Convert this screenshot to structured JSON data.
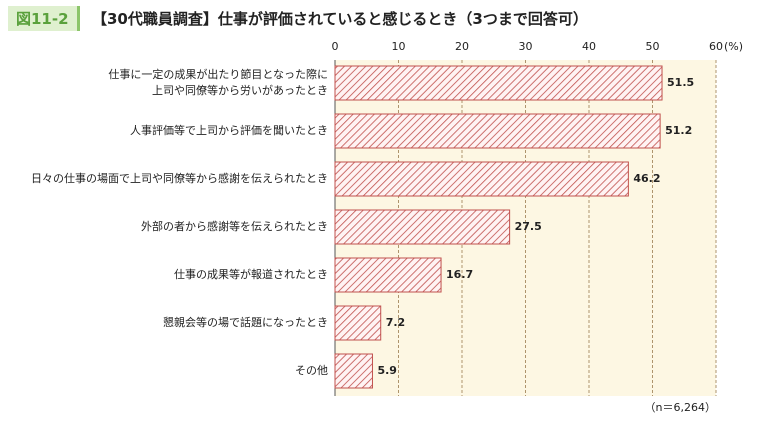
{
  "figure_label": "図11-2",
  "chart_data": {
    "type": "bar",
    "orientation": "horizontal",
    "title": "【30代職員調査】仕事が評価されていると感じるとき（3つまで回答可）",
    "categories": [
      "仕事に一定の成果が出たり節目となった際に\n上司や同僚等から労いがあったとき",
      "人事評価等で上司から評価を聞いたとき",
      "日々の仕事の場面で上司や同僚等から感謝を伝えられたとき",
      "外部の者から感謝等を伝えられたとき",
      "仕事の成果等が報道されたとき",
      "懇親会等の場で話題になったとき",
      "その他"
    ],
    "values": [
      51.5,
      51.2,
      46.2,
      27.5,
      16.7,
      7.2,
      5.9
    ],
    "color": "#c0504d",
    "xlim": [
      0,
      60
    ],
    "xticks": [
      0,
      10,
      20,
      30,
      40,
      50,
      60
    ],
    "x_unit": "(%)",
    "grid": true,
    "note": "（n＝6,264）"
  }
}
